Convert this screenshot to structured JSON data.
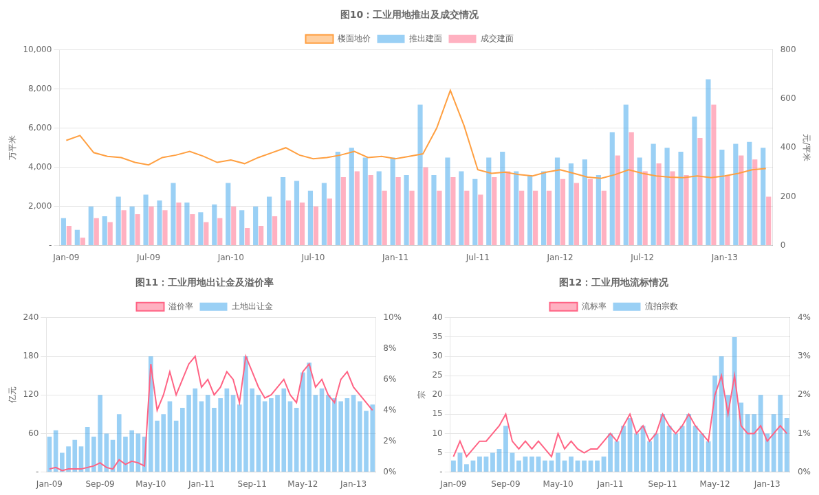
{
  "chart_data": [
    {
      "type": "bar",
      "title": "图10：工业用地推出及成交情况",
      "categories": [
        "Jan-09",
        null,
        null,
        null,
        null,
        null,
        "Jul-09",
        null,
        null,
        null,
        null,
        null,
        "Jan-10",
        null,
        null,
        null,
        null,
        null,
        "Jul-10",
        null,
        null,
        null,
        null,
        null,
        "Jan-11",
        null,
        null,
        null,
        null,
        null,
        "Jul-11",
        null,
        null,
        null,
        null,
        null,
        "Jan-12",
        null,
        null,
        null,
        null,
        null,
        "Jul-12",
        null,
        null,
        null,
        null,
        null,
        "Jan-13",
        null,
        null,
        null
      ],
      "series": [
        {
          "name": "推出建面",
          "type": "bar",
          "values": [
            1400,
            800,
            2000,
            1500,
            2500,
            2000,
            2600,
            2300,
            3200,
            2200,
            1700,
            2100,
            3200,
            1800,
            2000,
            2500,
            3500,
            3300,
            2800,
            3200,
            4800,
            5000,
            4500,
            3800,
            4500,
            3600,
            7200,
            3600,
            4500,
            3800,
            3400,
            4500,
            4800,
            3800,
            3600,
            3800,
            4500,
            4200,
            4400,
            3600,
            5800,
            7200,
            4500,
            5200,
            5000,
            4800,
            6600,
            8500,
            4900,
            5200,
            5300,
            5000
          ]
        },
        {
          "name": "成交建面",
          "type": "bar",
          "values": [
            1000,
            400,
            1400,
            1200,
            1800,
            1600,
            2000,
            1800,
            2200,
            1600,
            1200,
            1400,
            2000,
            900,
            1000,
            1500,
            2300,
            2200,
            2000,
            2400,
            3500,
            3800,
            3600,
            2800,
            3500,
            2800,
            4000,
            2800,
            3500,
            2800,
            2600,
            3500,
            3800,
            2800,
            2800,
            2800,
            3400,
            3200,
            3400,
            2800,
            4600,
            5800,
            3800,
            4200,
            3800,
            3600,
            5500,
            7200,
            3600,
            4600,
            4400,
            2500
          ]
        },
        {
          "name": "楼面地价",
          "type": "line",
          "axis": "y2",
          "values": [
            430,
            450,
            380,
            365,
            360,
            340,
            330,
            360,
            370,
            385,
            365,
            340,
            350,
            335,
            360,
            380,
            400,
            370,
            355,
            360,
            370,
            385,
            360,
            365,
            355,
            365,
            375,
            480,
            635,
            490,
            310,
            295,
            300,
            290,
            285,
            300,
            310,
            295,
            280,
            275,
            290,
            310,
            295,
            285,
            280,
            278,
            285,
            278,
            285,
            295,
            310,
            315
          ]
        }
      ],
      "ylabel": "万平米",
      "y2label": "元/平米",
      "ylim": [
        0,
        10000
      ],
      "yticks": [
        {
          "value": 0,
          "label": "-"
        },
        {
          "value": 2000,
          "label": "2,000"
        },
        {
          "value": 4000,
          "label": "4,000"
        },
        {
          "value": 6000,
          "label": "6,000"
        },
        {
          "value": 8000,
          "label": "8,000"
        },
        {
          "value": 10000,
          "label": "10,000"
        }
      ],
      "y2lim": [
        0,
        800
      ],
      "y2ticks": [
        0,
        200,
        400,
        600,
        800
      ],
      "grid": "y",
      "legend": "top"
    },
    {
      "type": "bar",
      "title": "图11：工业用地出让金及溢价率",
      "categories": [
        "Jan-09",
        null,
        null,
        null,
        null,
        null,
        null,
        null,
        "Sep-09",
        null,
        null,
        null,
        null,
        null,
        null,
        null,
        "May-10",
        null,
        null,
        null,
        null,
        null,
        null,
        null,
        "Jan-11",
        null,
        null,
        null,
        null,
        null,
        null,
        null,
        "Sep-11",
        null,
        null,
        null,
        null,
        null,
        null,
        null,
        "May-12",
        null,
        null,
        null,
        null,
        null,
        null,
        null,
        "Jan-13",
        null,
        null,
        null
      ],
      "series": [
        {
          "name": "土地出让金",
          "type": "bar",
          "values": [
            55,
            65,
            30,
            40,
            50,
            40,
            70,
            55,
            120,
            60,
            50,
            90,
            55,
            65,
            60,
            55,
            180,
            80,
            90,
            110,
            80,
            100,
            120,
            130,
            110,
            120,
            100,
            115,
            130,
            120,
            105,
            180,
            130,
            120,
            110,
            115,
            120,
            130,
            110,
            100,
            155,
            170,
            120,
            130,
            120,
            115,
            110,
            115,
            120,
            110,
            95,
            105
          ]
        },
        {
          "name": "溢价率",
          "type": "line",
          "axis": "y2",
          "values": [
            0.002,
            0.003,
            0.001,
            0.002,
            0.002,
            0.002,
            0.003,
            0.004,
            0.006,
            0.003,
            0.002,
            0.008,
            0.005,
            0.007,
            0.006,
            0.004,
            0.07,
            0.04,
            0.05,
            0.065,
            0.05,
            0.06,
            0.07,
            0.075,
            0.055,
            0.06,
            0.05,
            0.055,
            0.065,
            0.06,
            0.045,
            0.075,
            0.065,
            0.055,
            0.048,
            0.05,
            0.055,
            0.06,
            0.05,
            0.045,
            0.065,
            0.07,
            0.055,
            0.06,
            0.05,
            0.045,
            0.06,
            0.065,
            0.055,
            0.05,
            0.045,
            0.04
          ]
        }
      ],
      "ylabel": "亿元",
      "ylim": [
        0,
        240
      ],
      "yticks": [
        {
          "value": 0,
          "label": "-"
        },
        60,
        120,
        180,
        240
      ],
      "y2lim": [
        0,
        0.1
      ],
      "y2ticks": [
        {
          "value": 0,
          "label": "0%"
        },
        {
          "value": 0.02,
          "label": "2%"
        },
        {
          "value": 0.04,
          "label": "4%"
        },
        {
          "value": 0.06,
          "label": "6%"
        },
        {
          "value": 0.08,
          "label": "8%"
        },
        {
          "value": 0.1,
          "label": "10%"
        }
      ],
      "grid": "y",
      "legend": "top"
    },
    {
      "type": "bar",
      "title": "图12：工业用地流标情况",
      "categories": [
        "Jan-09",
        null,
        null,
        null,
        null,
        null,
        null,
        null,
        "Sep-09",
        null,
        null,
        null,
        null,
        null,
        null,
        null,
        "May-10",
        null,
        null,
        null,
        null,
        null,
        null,
        null,
        "Jan-11",
        null,
        null,
        null,
        null,
        null,
        null,
        null,
        "Sep-11",
        null,
        null,
        null,
        null,
        null,
        null,
        null,
        "May-12",
        null,
        null,
        null,
        null,
        null,
        null,
        null,
        "Jan-13",
        null,
        null,
        null
      ],
      "series": [
        {
          "name": "流拍宗数",
          "type": "bar",
          "values": [
            3,
            5,
            2,
            3,
            4,
            4,
            5,
            6,
            12,
            5,
            3,
            4,
            4,
            4,
            3,
            3,
            5,
            3,
            4,
            3,
            3,
            3,
            3,
            4,
            10,
            8,
            12,
            14,
            10,
            12,
            8,
            10,
            15,
            12,
            10,
            12,
            15,
            12,
            10,
            8,
            25,
            30,
            20,
            35,
            18,
            15,
            15,
            20,
            10,
            15,
            20,
            14
          ]
        },
        {
          "name": "流标率",
          "type": "line",
          "axis": "y2",
          "values": [
            0.004,
            0.008,
            0.004,
            0.006,
            0.008,
            0.008,
            0.01,
            0.012,
            0.015,
            0.008,
            0.006,
            0.008,
            0.006,
            0.008,
            0.006,
            0.004,
            0.01,
            0.006,
            0.008,
            0.006,
            0.005,
            0.006,
            0.006,
            0.008,
            0.01,
            0.008,
            0.012,
            0.015,
            0.01,
            0.012,
            0.008,
            0.01,
            0.015,
            0.012,
            0.01,
            0.012,
            0.015,
            0.012,
            0.01,
            0.008,
            0.02,
            0.025,
            0.015,
            0.025,
            0.012,
            0.01,
            0.01,
            0.012,
            0.008,
            0.01,
            0.012,
            0.01
          ]
        }
      ],
      "ylabel": "宗",
      "ylim": [
        0,
        40
      ],
      "yticks": [
        {
          "value": 0,
          "label": "-"
        },
        5,
        10,
        15,
        20,
        25,
        30,
        35,
        40
      ],
      "y2lim": [
        0,
        0.04
      ],
      "y2ticks": [
        {
          "value": 0,
          "label": "0%"
        },
        {
          "value": 0.01,
          "label": "1%"
        },
        {
          "value": 0.02,
          "label": "2%"
        },
        {
          "value": 0.03,
          "label": "3%"
        },
        {
          "value": 0.04,
          "label": "4%"
        }
      ],
      "grid": "y",
      "legend": "top"
    }
  ]
}
